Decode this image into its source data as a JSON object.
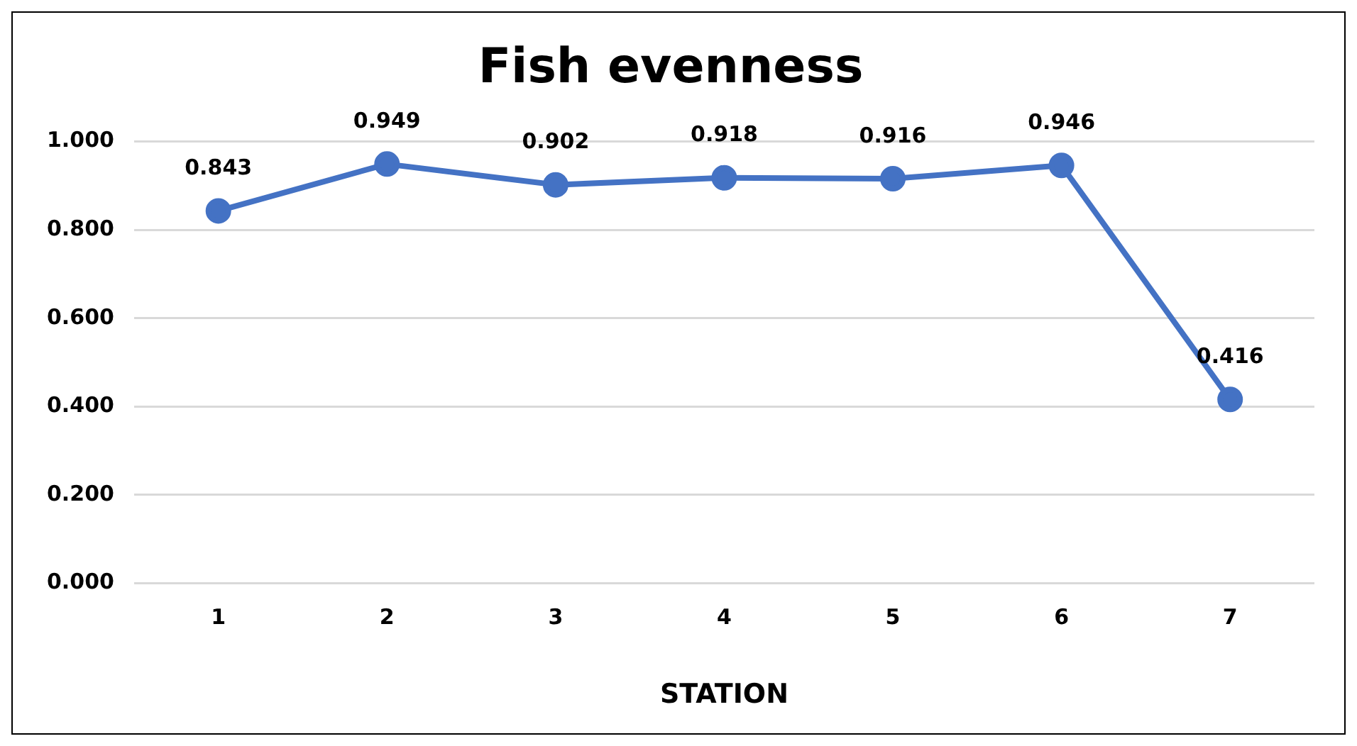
{
  "chart_data": {
    "type": "line",
    "title": "Fish evenness",
    "xlabel": "STATION",
    "categories": [
      "1",
      "2",
      "3",
      "4",
      "5",
      "6",
      "7"
    ],
    "series": [
      {
        "color": "#4472c4",
        "values": [
          0.843,
          0.949,
          0.902,
          0.918,
          0.916,
          0.946,
          0.416
        ]
      }
    ],
    "ylim": [
      0,
      1
    ],
    "yticks": [
      {
        "value": 0,
        "label": "0.000"
      },
      {
        "value": 0.2,
        "label": "0.200"
      },
      {
        "value": 0.4,
        "label": "0.400"
      },
      {
        "value": 0.6,
        "label": "0.600"
      },
      {
        "value": 0.8,
        "label": "0.800"
      },
      {
        "value": 1,
        "label": "1.000"
      }
    ],
    "grid": "y",
    "legend": false,
    "marker": "circle",
    "line_style": "solid",
    "data_labels": true
  }
}
